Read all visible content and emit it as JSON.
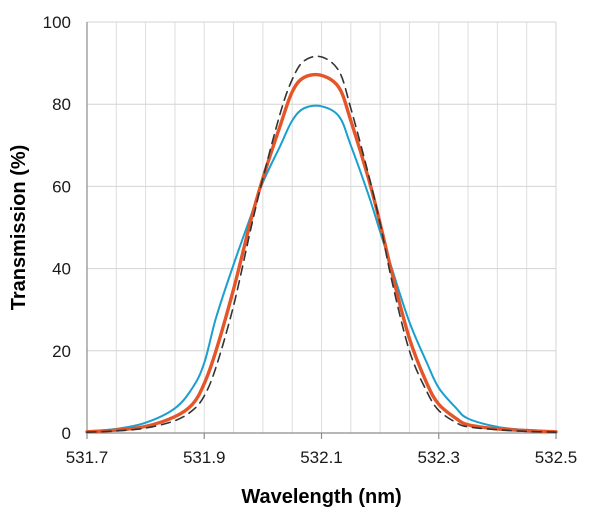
{
  "chart_data": {
    "type": "line",
    "xlabel": "Wavelength (nm)",
    "ylabel": "Transmission (%)",
    "xlim": [
      531.7,
      532.5
    ],
    "ylim": [
      0,
      100
    ],
    "x_ticks": [
      "531.7",
      "531.9",
      "532.1",
      "532.3",
      "532.5"
    ],
    "x_tick_values": [
      531.7,
      531.9,
      532.1,
      532.3,
      532.5
    ],
    "y_ticks": [
      "0",
      "20",
      "40",
      "60",
      "80",
      "100"
    ],
    "y_tick_values": [
      0,
      20,
      40,
      60,
      80,
      100
    ],
    "x_minor_step": 0.05,
    "grid": true,
    "legend": "none",
    "series": [
      {
        "color": "#1a9fcf",
        "style": "solid",
        "x": [
          531.7,
          531.75,
          531.8,
          531.85,
          531.88,
          531.9,
          531.92,
          531.95,
          531.98,
          532.0,
          532.03,
          532.05,
          532.07,
          532.1,
          532.13,
          532.15,
          532.18,
          532.2,
          532.22,
          532.25,
          532.28,
          532.3,
          532.33,
          532.35,
          532.4,
          532.45,
          532.5
        ],
        "y": [
          0.4,
          1.0,
          2.5,
          6,
          11,
          17,
          28,
          41,
          53,
          61,
          70,
          76,
          79,
          79.5,
          77,
          70,
          58,
          49,
          40,
          27,
          17,
          11,
          6,
          3.5,
          1.5,
          0.7,
          0.3
        ]
      },
      {
        "color": "#e4562a",
        "style": "solid",
        "x": [
          531.7,
          531.75,
          531.8,
          531.85,
          531.88,
          531.9,
          531.92,
          531.95,
          531.98,
          532.0,
          532.03,
          532.05,
          532.07,
          532.1,
          532.13,
          532.15,
          532.18,
          532.2,
          532.22,
          532.25,
          532.28,
          532.3,
          532.33,
          532.35,
          532.4,
          532.45,
          532.5
        ],
        "y": [
          0.3,
          0.7,
          1.6,
          4,
          7,
          12,
          20,
          35,
          52,
          62,
          75,
          83,
          86.5,
          87,
          84,
          76,
          62,
          51,
          39,
          23,
          12,
          7,
          3.5,
          2,
          1,
          0.6,
          0.3
        ]
      },
      {
        "color": "#333333",
        "style": "dashed",
        "x": [
          531.7,
          531.75,
          531.8,
          531.85,
          531.88,
          531.9,
          531.92,
          531.95,
          531.98,
          532.0,
          532.03,
          532.05,
          532.07,
          532.1,
          532.13,
          532.15,
          532.18,
          532.2,
          532.22,
          532.25,
          532.28,
          532.3,
          532.33,
          532.35,
          532.4,
          532.45,
          532.5
        ],
        "y": [
          0.2,
          0.5,
          1.2,
          3,
          5.5,
          9,
          16,
          31,
          50,
          62,
          78,
          86,
          90.5,
          91.5,
          88,
          79,
          63,
          51,
          37,
          20,
          10,
          5.5,
          2.5,
          1.5,
          0.8,
          0.4,
          0.2
        ]
      }
    ]
  }
}
